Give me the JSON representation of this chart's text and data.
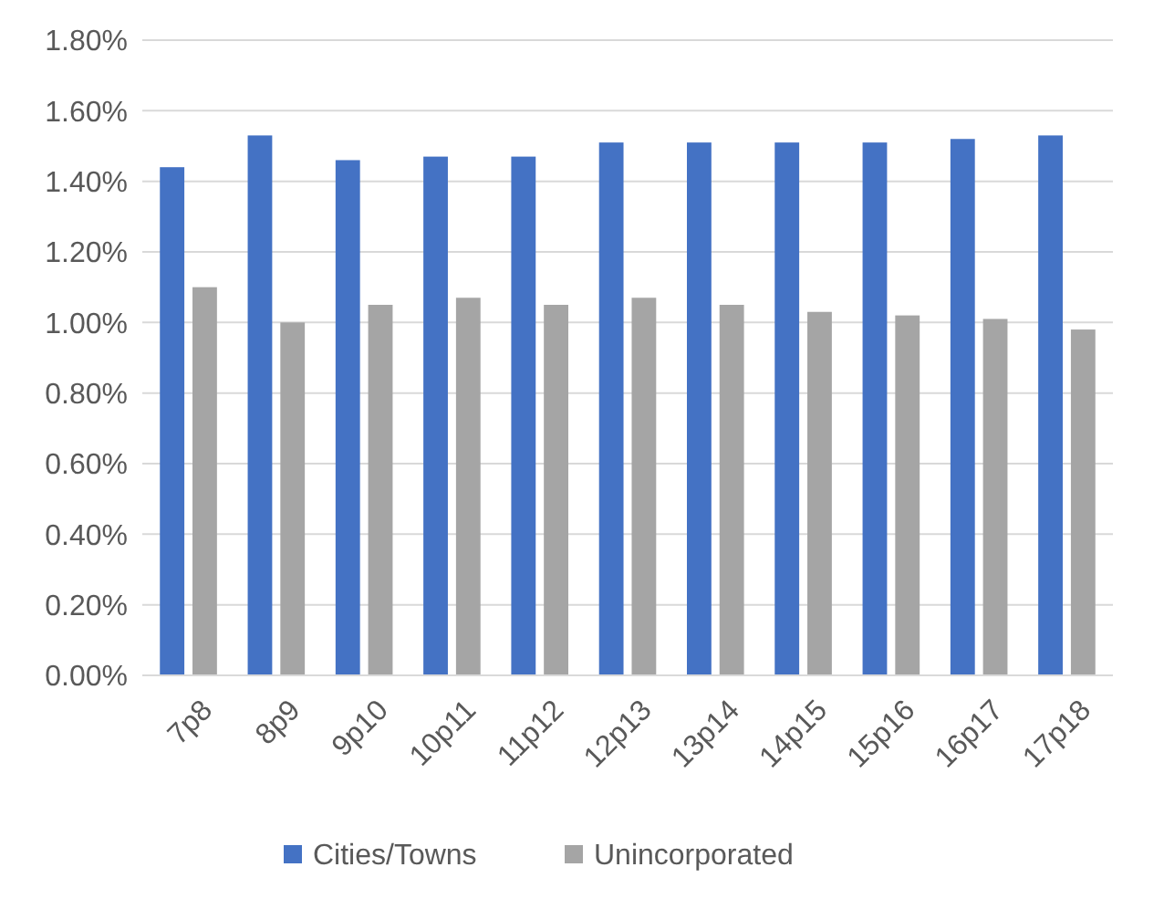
{
  "chart_data": {
    "type": "bar",
    "categories": [
      "7p8",
      "8p9",
      "9p10",
      "10p11",
      "11p12",
      "12p13",
      "13p14",
      "14p15",
      "15p16",
      "16p17",
      "17p18"
    ],
    "series": [
      {
        "name": "Cities/Towns",
        "color": "#4472c4",
        "values": [
          1.44,
          1.53,
          1.46,
          1.47,
          1.47,
          1.51,
          1.51,
          1.51,
          1.51,
          1.52,
          1.53
        ]
      },
      {
        "name": "Unincorporated",
        "color": "#a5a5a5",
        "values": [
          1.1,
          1.0,
          1.05,
          1.07,
          1.05,
          1.07,
          1.05,
          1.03,
          1.02,
          1.01,
          0.98
        ]
      }
    ],
    "ylim": [
      0,
      1.8
    ],
    "yticks": [
      {
        "value": 0,
        "label": "0.00%"
      },
      {
        "value": 0.2,
        "label": "0.20%"
      },
      {
        "value": 0.4,
        "label": "0.40%"
      },
      {
        "value": 0.6,
        "label": "0.60%"
      },
      {
        "value": 0.8,
        "label": "0.80%"
      },
      {
        "value": 1.0,
        "label": "1.00%"
      },
      {
        "value": 1.2,
        "label": "1.20%"
      },
      {
        "value": 1.4,
        "label": "1.40%"
      },
      {
        "value": 1.6,
        "label": "1.60%"
      },
      {
        "value": 1.8,
        "label": "1.80%"
      }
    ],
    "grid": "y",
    "legend": "bottom"
  }
}
